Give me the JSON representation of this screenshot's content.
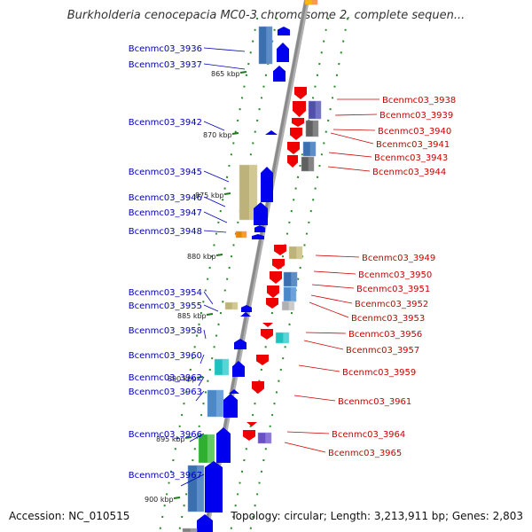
{
  "title": "Burkholderia cenocepacia MC0-3 chromosome 2, complete sequen...",
  "footer": {
    "accession": "Accession: NC_010515",
    "topology": "Topology: circular; Length: 3,213,911 bp; Genes: 2,803"
  },
  "colors": {
    "left_label": "#0000bb",
    "right_label": "#cc0000",
    "backbone": "#8a8a8a",
    "kbp_tick": "#1b7a1b"
  },
  "kbp_ticks": [
    "865 kbp",
    "870 kbp",
    "875 kbp",
    "880 kbp",
    "885 kbp",
    "890 kbp",
    "895 kbp",
    "900 kbp"
  ],
  "left_genes": [
    "Bcenmc03_3936",
    "Bcenmc03_3937",
    "Bcenmc03_3942",
    "Bcenmc03_3945",
    "Bcenmc03_3946",
    "Bcenmc03_3947",
    "Bcenmc03_3948",
    "Bcenmc03_3954",
    "Bcenmc03_3955",
    "Bcenmc03_3958",
    "Bcenmc03_3960",
    "Bcenmc03_3962",
    "Bcenmc03_3963",
    "Bcenmc03_3966",
    "Bcenmc03_3967"
  ],
  "right_genes": [
    "Bcenmc03_3938",
    "Bcenmc03_3939",
    "Bcenmc03_3940",
    "Bcenmc03_3941",
    "Bcenmc03_3943",
    "Bcenmc03_3944",
    "Bcenmc03_3949",
    "Bcenmc03_3950",
    "Bcenmc03_3951",
    "Bcenmc03_3952",
    "Bcenmc03_3953",
    "Bcenmc03_3956",
    "Bcenmc03_3957",
    "Bcenmc03_3959",
    "Bcenmc03_3961",
    "Bcenmc03_3964",
    "Bcenmc03_3965"
  ]
}
